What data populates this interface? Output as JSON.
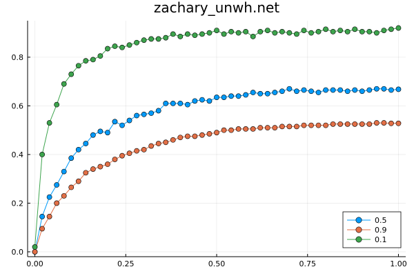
{
  "chart_data": {
    "type": "line",
    "title": "zachary_unwh.net",
    "xlabel": "",
    "ylabel": "",
    "xlim": [
      -0.02,
      1.02
    ],
    "ylim": [
      -0.02,
      0.95
    ],
    "xticks": [
      0.0,
      0.25,
      0.5,
      0.75,
      1.0
    ],
    "xtick_labels": [
      "0.00",
      "0.25",
      "0.50",
      "0.75",
      "1.00"
    ],
    "yticks": [
      0.0,
      0.2,
      0.4,
      0.6,
      0.8
    ],
    "ytick_labels": [
      "0.0",
      "0.2",
      "0.4",
      "0.6",
      "0.8"
    ],
    "grid": true,
    "legend_position": "bottom-right",
    "x": [
      0.0,
      0.02,
      0.04,
      0.06,
      0.08,
      0.1,
      0.12,
      0.14,
      0.16,
      0.18,
      0.2,
      0.22,
      0.24,
      0.26,
      0.28,
      0.3,
      0.32,
      0.34,
      0.36,
      0.38,
      0.4,
      0.42,
      0.44,
      0.46,
      0.48,
      0.5,
      0.52,
      0.54,
      0.56,
      0.58,
      0.6,
      0.62,
      0.64,
      0.66,
      0.68,
      0.7,
      0.72,
      0.74,
      0.76,
      0.78,
      0.8,
      0.82,
      0.84,
      0.86,
      0.88,
      0.9,
      0.92,
      0.94,
      0.96,
      0.98,
      1.0
    ],
    "series": [
      {
        "name": "0.5",
        "color": "#009af9",
        "values": [
          0.0,
          0.145,
          0.225,
          0.275,
          0.33,
          0.385,
          0.42,
          0.445,
          0.48,
          0.495,
          0.49,
          0.535,
          0.52,
          0.54,
          0.56,
          0.565,
          0.57,
          0.58,
          0.61,
          0.61,
          0.61,
          0.605,
          0.62,
          0.625,
          0.62,
          0.635,
          0.635,
          0.64,
          0.64,
          0.645,
          0.655,
          0.65,
          0.65,
          0.655,
          0.66,
          0.67,
          0.66,
          0.665,
          0.66,
          0.655,
          0.665,
          0.665,
          0.665,
          0.66,
          0.665,
          0.66,
          0.665,
          0.67,
          0.67,
          0.665,
          0.668
        ]
      },
      {
        "name": "0.9",
        "color": "#e26f46",
        "values": [
          0.0,
          0.095,
          0.145,
          0.2,
          0.23,
          0.265,
          0.29,
          0.325,
          0.34,
          0.35,
          0.36,
          0.38,
          0.395,
          0.405,
          0.415,
          0.42,
          0.435,
          0.445,
          0.45,
          0.46,
          0.47,
          0.475,
          0.475,
          0.48,
          0.485,
          0.49,
          0.5,
          0.5,
          0.505,
          0.505,
          0.505,
          0.51,
          0.51,
          0.51,
          0.515,
          0.515,
          0.515,
          0.52,
          0.52,
          0.52,
          0.52,
          0.525,
          0.525,
          0.525,
          0.525,
          0.525,
          0.525,
          0.53,
          0.53,
          0.528,
          0.528
        ]
      },
      {
        "name": "0.1",
        "color": "#3da44d",
        "values": [
          0.02,
          0.4,
          0.53,
          0.605,
          0.69,
          0.73,
          0.765,
          0.785,
          0.79,
          0.805,
          0.835,
          0.845,
          0.84,
          0.85,
          0.86,
          0.87,
          0.875,
          0.875,
          0.88,
          0.895,
          0.885,
          0.895,
          0.89,
          0.895,
          0.9,
          0.91,
          0.895,
          0.905,
          0.9,
          0.905,
          0.885,
          0.905,
          0.91,
          0.9,
          0.905,
          0.9,
          0.895,
          0.91,
          0.9,
          0.905,
          0.915,
          0.905,
          0.91,
          0.905,
          0.915,
          0.905,
          0.905,
          0.9,
          0.91,
          0.915,
          0.92
        ]
      }
    ]
  }
}
